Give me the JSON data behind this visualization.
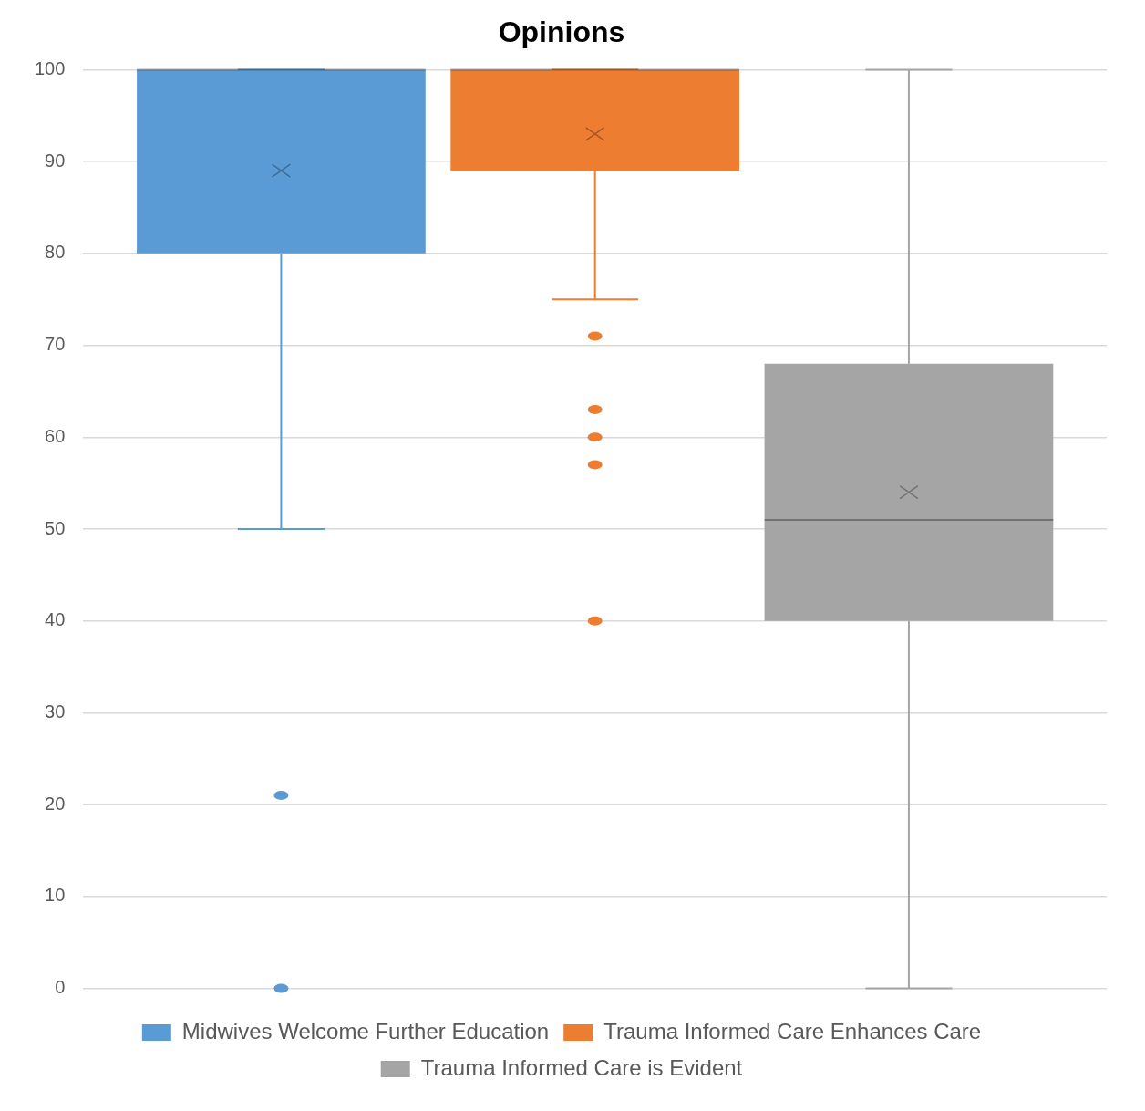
{
  "chart_data": {
    "type": "box",
    "title": "Opinions",
    "categories": [
      null
    ],
    "ylim": [
      0,
      100
    ],
    "yticks": [
      0,
      10,
      20,
      30,
      40,
      50,
      60,
      70,
      80,
      90,
      100
    ],
    "grid": "y",
    "legend": "bottom",
    "series": [
      {
        "name": "Midwives Welcome Further Education",
        "color": "#5b9bd5",
        "boxes": [
          {
            "low": 50,
            "q1": 80,
            "median": 100,
            "q3": 100,
            "high": 100,
            "mean": 89,
            "outliers": [
              21,
              0
            ]
          }
        ]
      },
      {
        "name": "Trauma Informed Care Enhances Care",
        "color": "#ed7d31",
        "boxes": [
          {
            "low": 75,
            "q1": 89,
            "median": 100,
            "q3": 100,
            "high": 100,
            "mean": 93,
            "outliers": [
              71,
              63,
              60,
              57,
              40
            ]
          }
        ]
      },
      {
        "name": "Trauma Informed Care is Evident",
        "color": "#a5a5a5",
        "boxes": [
          {
            "low": 0,
            "q1": 40,
            "median": 51,
            "q3": 68,
            "high": 100,
            "mean": 54
          }
        ]
      }
    ]
  }
}
